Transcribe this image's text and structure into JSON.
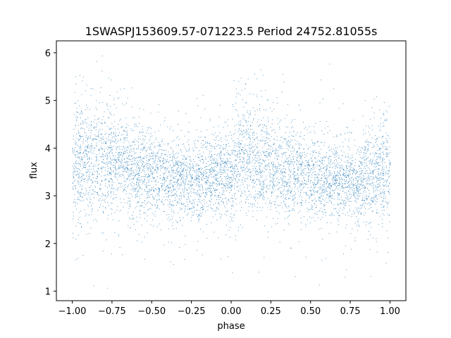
{
  "chart_data": {
    "type": "scatter",
    "title": "1SWASPJ153609.57-071223.5 Period 24752.81055s",
    "xlabel": "phase",
    "ylabel": "flux",
    "xlim": [
      -1.1,
      1.1
    ],
    "ylim": [
      0.8,
      6.25
    ],
    "xticks": [
      -1.0,
      -0.75,
      -0.5,
      -0.25,
      0.0,
      0.25,
      0.5,
      0.75,
      1.0
    ],
    "xtick_labels": [
      "−1.00",
      "−0.75",
      "−0.50",
      "−0.25",
      "0.00",
      "0.25",
      "0.50",
      "0.75",
      "1.00"
    ],
    "yticks": [
      1,
      2,
      3,
      4,
      5,
      6
    ],
    "ytick_labels": [
      "1",
      "2",
      "3",
      "4",
      "5",
      "6"
    ],
    "grid": false,
    "legend": "none",
    "marker_color": "#1f77b4",
    "series": [
      {
        "description_of_distribution": "phase-folded light curve, dense band of points spanning phase -1 to 1",
        "x": [
          -1.0,
          -0.9,
          -0.8,
          -0.7,
          -0.6,
          -0.5,
          -0.4,
          -0.3,
          -0.2,
          -0.1,
          0.0,
          0.05,
          0.1,
          0.2,
          0.3,
          0.4,
          0.5,
          0.6,
          0.7,
          0.8,
          0.9,
          1.0
        ],
        "y_median": [
          3.6,
          3.75,
          3.8,
          3.7,
          3.6,
          3.5,
          3.4,
          3.35,
          3.3,
          3.4,
          3.55,
          3.8,
          3.8,
          3.7,
          3.6,
          3.5,
          3.4,
          3.35,
          3.3,
          3.3,
          3.45,
          3.6
        ],
        "y_spread": [
          0.55,
          0.6,
          0.6,
          0.55,
          0.5,
          0.45,
          0.42,
          0.4,
          0.4,
          0.42,
          0.5,
          0.6,
          0.6,
          0.55,
          0.5,
          0.45,
          0.42,
          0.4,
          0.4,
          0.4,
          0.48,
          0.55
        ],
        "y_min": 1.0,
        "y_max": 6.0
      }
    ]
  }
}
